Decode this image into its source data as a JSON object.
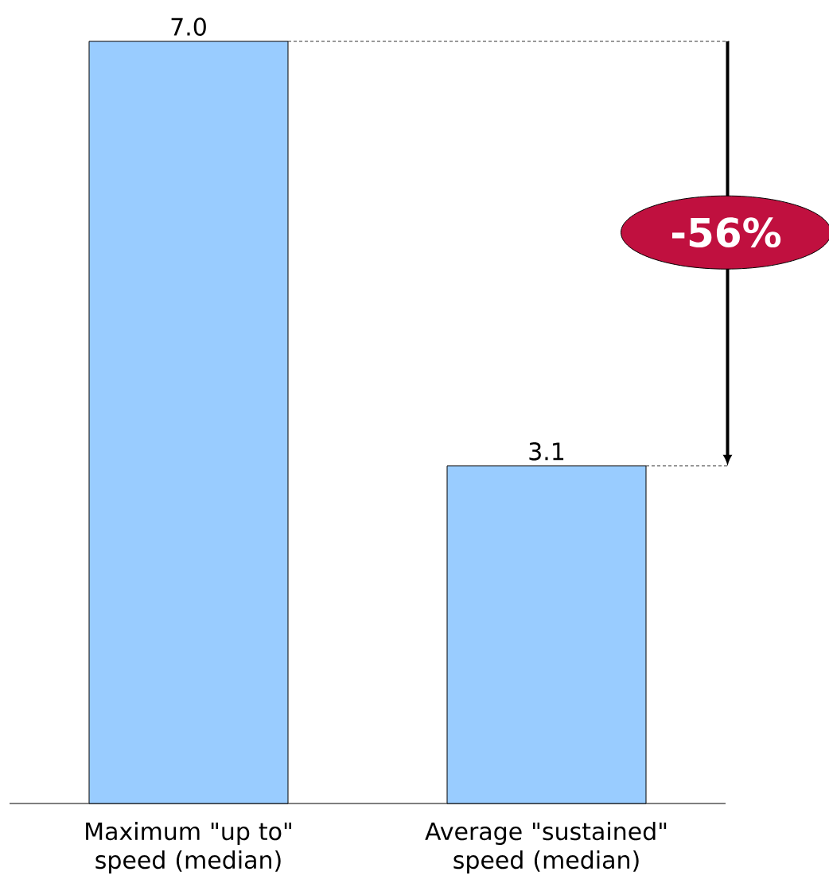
{
  "chart_data": {
    "type": "bar",
    "categories": [
      "Maximum \"up to\" speed (median)",
      "Average \"sustained\" speed (median)"
    ],
    "values": [
      7.0,
      3.1
    ],
    "color": "#99ccff",
    "value_labels": [
      "7.0",
      "3.1"
    ],
    "annotations": [
      "-56%"
    ]
  }
}
